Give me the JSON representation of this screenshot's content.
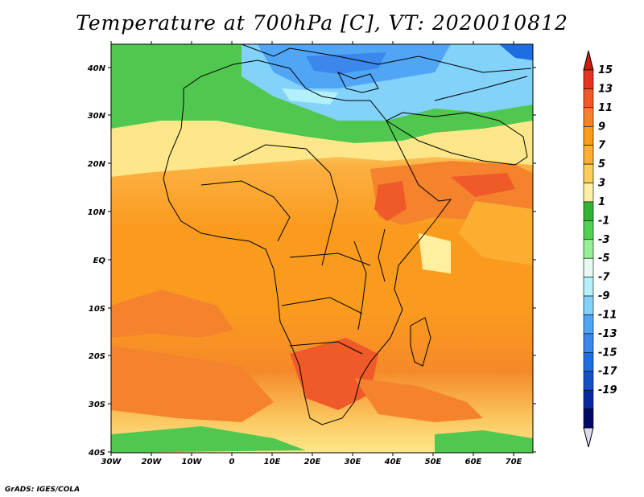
{
  "title": "Temperature at 700hPa [C], VT: 2020010812",
  "credit": "GrADS: IGES/COLA",
  "map": {
    "lat_labels": [
      "40N",
      "30N",
      "20N",
      "10N",
      "EQ",
      "10S",
      "20S",
      "30S",
      "40S"
    ],
    "lon_labels": [
      "30W",
      "20W",
      "10W",
      "0",
      "10E",
      "20E",
      "30E",
      "40E",
      "50E",
      "60E",
      "70E"
    ]
  },
  "colorbar": {
    "labels": [
      "15",
      "13",
      "11",
      "9",
      "7",
      "5",
      "3",
      "1",
      "-1",
      "-3",
      "-5",
      "-7",
      "-9",
      "-11",
      "-13",
      "-15",
      "-17",
      "-19"
    ],
    "colors": [
      "#e6321e",
      "#f05a28",
      "#f5822d",
      "#fa9b1e",
      "#fbae32",
      "#fdcd5a",
      "#fef0a0",
      "#32b432",
      "#50d250",
      "#96f096",
      "#e6faf0",
      "#b4f0fa",
      "#82d2fa",
      "#50a5f5",
      "#3c87eb",
      "#1e6ee1",
      "#1450c8",
      "#0a28a0",
      "#000a64"
    ],
    "top_color": "#c81e0a",
    "bottom_color": "#dcdcf0"
  }
}
